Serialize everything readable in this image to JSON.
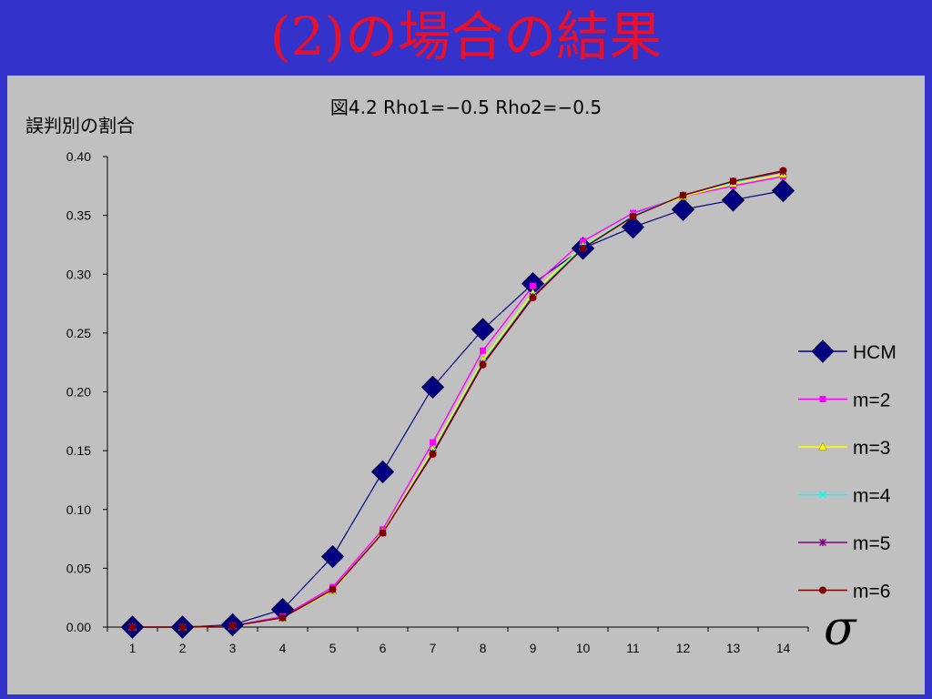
{
  "slide_title": "(2)の場合の結果",
  "chart_data": {
    "type": "line",
    "title": "図4.2 Rho1=−0.5 Rho2=−0.5",
    "ylabel": "誤判別の割合",
    "xlabel": "σ",
    "categories": [
      "1",
      "2",
      "3",
      "4",
      "5",
      "6",
      "7",
      "8",
      "9",
      "10",
      "11",
      "12",
      "13",
      "14"
    ],
    "y_ticks": [
      "0.00",
      "0.05",
      "0.10",
      "0.15",
      "0.20",
      "0.25",
      "0.30",
      "0.35",
      "0.40"
    ],
    "ylim": [
      0,
      0.4
    ],
    "grid": false,
    "legend_position": "right",
    "series": [
      {
        "name": "HCM",
        "color": "#000080",
        "marker": "diamond",
        "values": [
          0,
          0,
          0.002,
          0.015,
          0.06,
          0.132,
          0.204,
          0.253,
          0.292,
          0.322,
          0.34,
          0.355,
          0.363,
          0.371
        ]
      },
      {
        "name": "m=2",
        "color": "#ff00ff",
        "marker": "square",
        "values": [
          0,
          0,
          0.001,
          0.009,
          0.034,
          0.083,
          0.157,
          0.235,
          0.29,
          0.328,
          0.352,
          0.366,
          0.375,
          0.383
        ]
      },
      {
        "name": "m=3",
        "color": "#ffff00",
        "marker": "triangle",
        "values": [
          0,
          0,
          0.001,
          0.008,
          0.031,
          0.081,
          0.151,
          0.227,
          0.284,
          0.324,
          0.35,
          0.366,
          0.377,
          0.385
        ]
      },
      {
        "name": "m=4",
        "color": "#00ffff",
        "marker": "x",
        "values": [
          0,
          0,
          0.001,
          0.008,
          0.032,
          0.08,
          0.149,
          0.225,
          0.282,
          0.323,
          0.35,
          0.367,
          0.378,
          0.387
        ]
      },
      {
        "name": "m=5",
        "color": "#800080",
        "marker": "star",
        "values": [
          0,
          0,
          0.001,
          0.008,
          0.032,
          0.08,
          0.148,
          0.224,
          0.281,
          0.322,
          0.349,
          0.367,
          0.379,
          0.387
        ]
      },
      {
        "name": "m=6",
        "color": "#800000",
        "marker": "circle",
        "values": [
          0,
          0,
          0.001,
          0.008,
          0.032,
          0.08,
          0.147,
          0.223,
          0.28,
          0.322,
          0.349,
          0.367,
          0.379,
          0.388
        ]
      }
    ]
  }
}
